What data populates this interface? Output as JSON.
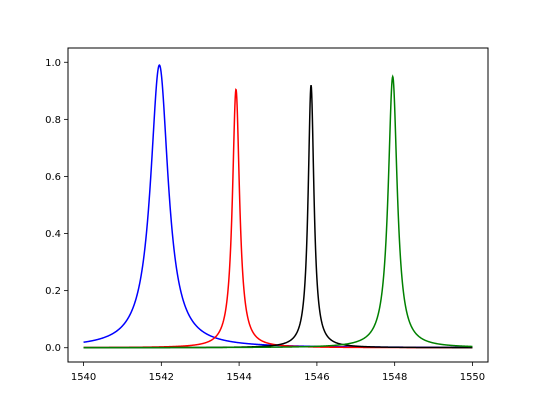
{
  "chart_data": {
    "type": "line",
    "title": "",
    "xlabel": "",
    "ylabel": "",
    "xlim": [
      1539.6,
      1550.4
    ],
    "ylim": [
      -0.05,
      1.05
    ],
    "x_ticks": [
      1540,
      1542,
      1544,
      1546,
      1548,
      1550
    ],
    "y_ticks": [
      0.0,
      0.2,
      0.4,
      0.6,
      0.8,
      1.0
    ],
    "x_tick_labels": [
      "1540",
      "1542",
      "1544",
      "1546",
      "1548",
      "1550"
    ],
    "y_tick_labels": [
      "0.0",
      "0.2",
      "0.4",
      "0.6",
      "0.8",
      "1.0"
    ],
    "grid": false,
    "legend": "none",
    "x_range": [
      1540,
      1550
    ],
    "series": [
      {
        "color": "#0000ff",
        "peak_x": 1541.95,
        "peak_y": 0.99,
        "fwhm": 0.55
      },
      {
        "color": "#ff0000",
        "peak_x": 1543.92,
        "peak_y": 0.905,
        "fwhm": 0.22
      },
      {
        "color": "#000000",
        "peak_x": 1545.85,
        "peak_y": 0.92,
        "fwhm": 0.18
      },
      {
        "color": "#008000",
        "peak_x": 1547.95,
        "peak_y": 0.95,
        "fwhm": 0.28
      }
    ]
  }
}
